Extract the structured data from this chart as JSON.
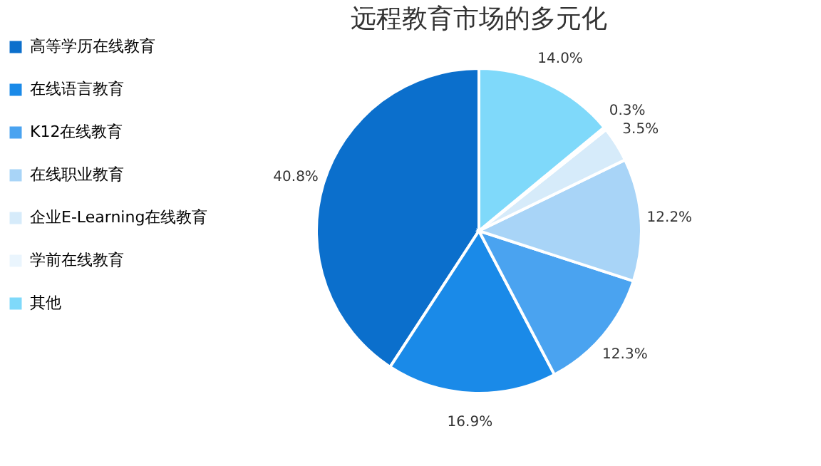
{
  "chart_data": {
    "type": "pie",
    "title": "远程教育市场的多元化",
    "categories": [
      "高等学历在线教育",
      "在线语言教育",
      "K12在线教育",
      "在线职业教育",
      "企业E-Learning在线教育",
      "学前在线教育",
      "其他"
    ],
    "values": [
      40.8,
      16.9,
      12.3,
      12.2,
      3.5,
      0.3,
      14.0
    ],
    "value_labels": [
      "40.8%",
      "16.9%",
      "12.3%",
      "12.2%",
      "3.5%",
      "0.3%",
      "14.0%"
    ],
    "colors": [
      "#0b6fcc",
      "#1a8ae8",
      "#4aa3f0",
      "#a8d4f7",
      "#d6ebfa",
      "#eaf5fd",
      "#7fd9fa"
    ],
    "legend": "left"
  }
}
